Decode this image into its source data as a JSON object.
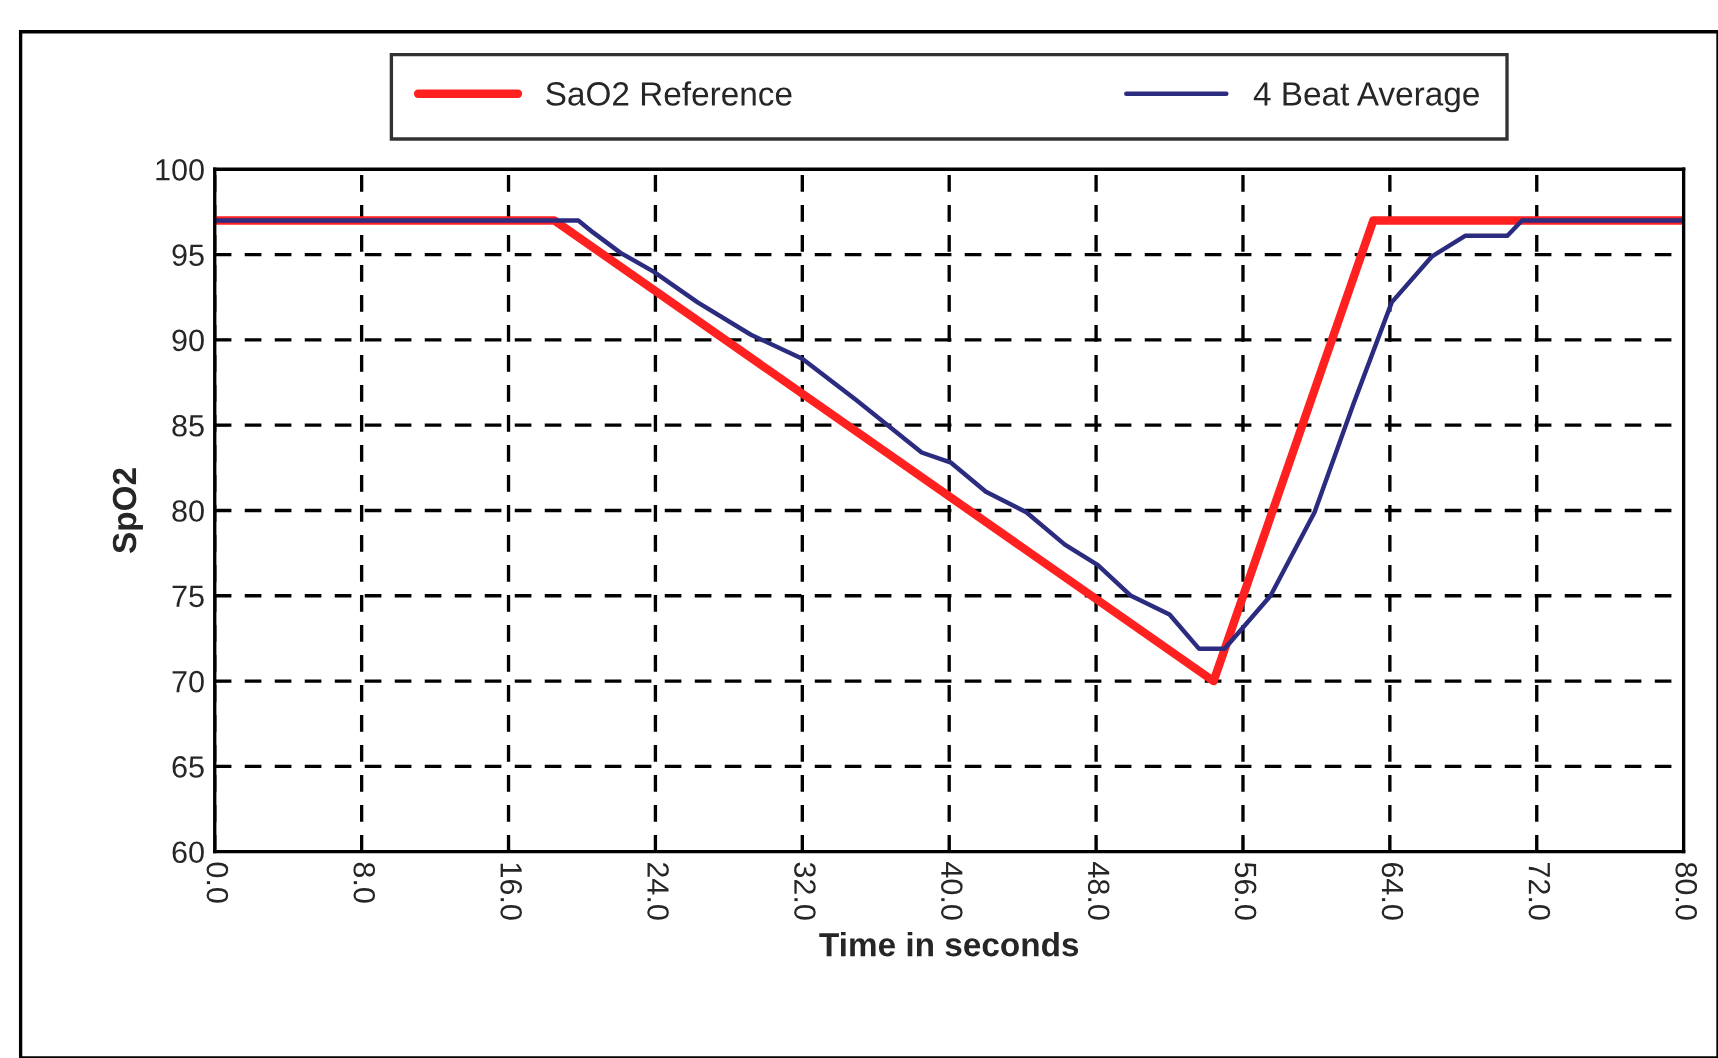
{
  "chart_data": {
    "type": "line",
    "xlabel": "Time in seconds",
    "ylabel": "SpO2",
    "xlim": [
      0,
      80
    ],
    "ylim": [
      60,
      100
    ],
    "xticks": [
      {
        "value": 0,
        "label": "0.0"
      },
      {
        "value": 8,
        "label": "8.0"
      },
      {
        "value": 16,
        "label": "16.0"
      },
      {
        "value": 24,
        "label": "24.0"
      },
      {
        "value": 32,
        "label": "32.0"
      },
      {
        "value": 40,
        "label": "40.0"
      },
      {
        "value": 48,
        "label": "48.0"
      },
      {
        "value": 56,
        "label": "56.0"
      },
      {
        "value": 64,
        "label": "64.0"
      },
      {
        "value": 72,
        "label": "72.0"
      },
      {
        "value": 80,
        "label": "80.0"
      }
    ],
    "yticks": [
      60,
      65,
      70,
      75,
      80,
      85,
      90,
      95,
      100
    ],
    "grid": true,
    "legend": "top",
    "marker": "none",
    "line_style": "solid",
    "series": [
      {
        "name": "SaO2 Reference",
        "color": "#ff2020",
        "x": [
          0,
          18.5,
          54.4,
          63.1,
          80
        ],
        "values": [
          97,
          97,
          70,
          97,
          97
        ]
      },
      {
        "name": "4 Beat Average",
        "color": "#2b2b80",
        "x": [
          0,
          19.8,
          20.6,
          22.1,
          23.9,
          26.3,
          29.2,
          32.0,
          34.9,
          38.5,
          40.1,
          42.0,
          44.2,
          46.3,
          48.1,
          49.9,
          52.0,
          53.6,
          55.0,
          57.5,
          59.9,
          62.0,
          64.1,
          66.3,
          68.1,
          70.4,
          71.2,
          80
        ],
        "values": [
          97,
          97,
          96.3,
          95.1,
          94.0,
          92.2,
          90.3,
          88.9,
          86.5,
          83.4,
          82.8,
          81.1,
          79.9,
          78.0,
          76.8,
          75.0,
          73.9,
          71.9,
          71.9,
          75.0,
          79.9,
          86.2,
          92.2,
          94.9,
          96.1,
          96.1,
          97,
          97
        ]
      }
    ]
  }
}
